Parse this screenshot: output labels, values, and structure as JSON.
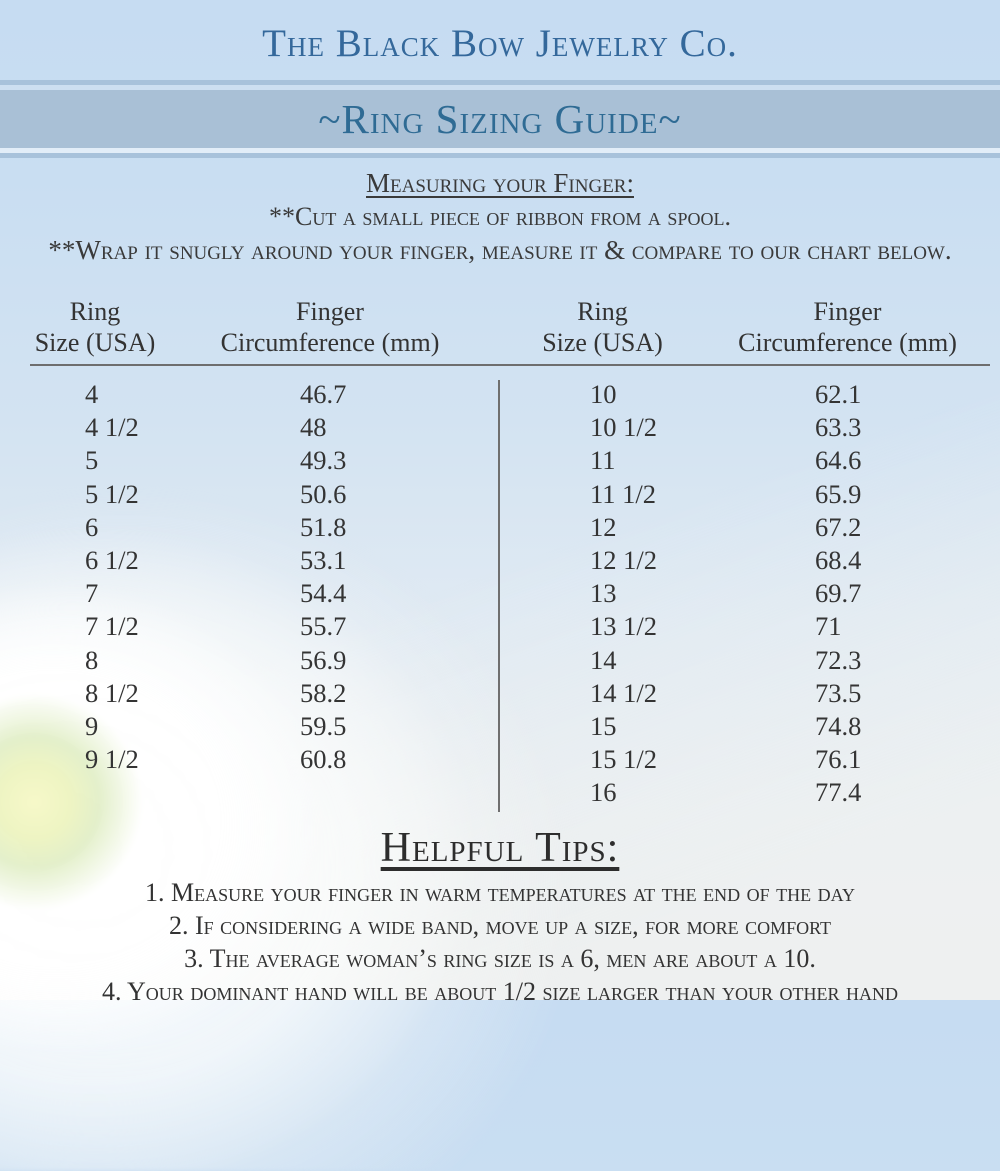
{
  "header": {
    "brand": "The Black Bow Jewelry Co.",
    "banner_title": "~Ring Sizing Guide~"
  },
  "instructions": {
    "heading": "Measuring your Finger:",
    "line1": "**Cut a small piece of ribbon from a spool.",
    "line2": "**Wrap it snugly around your finger, measure it & compare to our chart below."
  },
  "table": {
    "header_ring_line1": "Ring",
    "header_ring_line2": "Size (USA)",
    "header_finger_line1": "Finger",
    "header_finger_line2": "Circumference (mm)",
    "left_rows": [
      [
        "4",
        "46.7"
      ],
      [
        "4 1/2",
        "48"
      ],
      [
        "5",
        "49.3"
      ],
      [
        "5 1/2",
        "50.6"
      ],
      [
        "6",
        "51.8"
      ],
      [
        "6 1/2",
        "53.1"
      ],
      [
        "7",
        "54.4"
      ],
      [
        "7 1/2",
        "55.7"
      ],
      [
        "8",
        "56.9"
      ],
      [
        "8 1/2",
        "58.2"
      ],
      [
        "9",
        "59.5"
      ],
      [
        "9 1/2",
        "60.8"
      ]
    ],
    "right_rows": [
      [
        "10",
        "62.1"
      ],
      [
        "10 1/2",
        "63.3"
      ],
      [
        "11",
        "64.6"
      ],
      [
        "11 1/2",
        "65.9"
      ],
      [
        "12",
        "67.2"
      ],
      [
        "12 1/2",
        "68.4"
      ],
      [
        "13",
        "69.7"
      ],
      [
        "13 1/2",
        "71"
      ],
      [
        "14",
        "72.3"
      ],
      [
        "14 1/2",
        "73.5"
      ],
      [
        "15",
        "74.8"
      ],
      [
        "15 1/2",
        "76.1"
      ],
      [
        "16",
        "77.4"
      ]
    ]
  },
  "tips": {
    "heading": "Helpful Tips:",
    "items": [
      "1.  Measure your finger in warm temperatures at the end of the day",
      "2.  If considering a wide band, move up a size, for more comfort",
      "3.  The average woman’s ring size is a 6, men are about a 10.",
      "4.  Your dominant hand will be about 1/2 size larger than your other hand"
    ]
  },
  "colors": {
    "title_blue": "#34689b",
    "banner_text_blue": "#2f6b94",
    "banner_band": "#a9c0d6",
    "banner_stripe": "#a8c2db",
    "rule_gray": "#6e6e6e",
    "text_dark": "#333333",
    "background_top": "#c6dcf2",
    "background_bottom": "#ebeef0"
  }
}
